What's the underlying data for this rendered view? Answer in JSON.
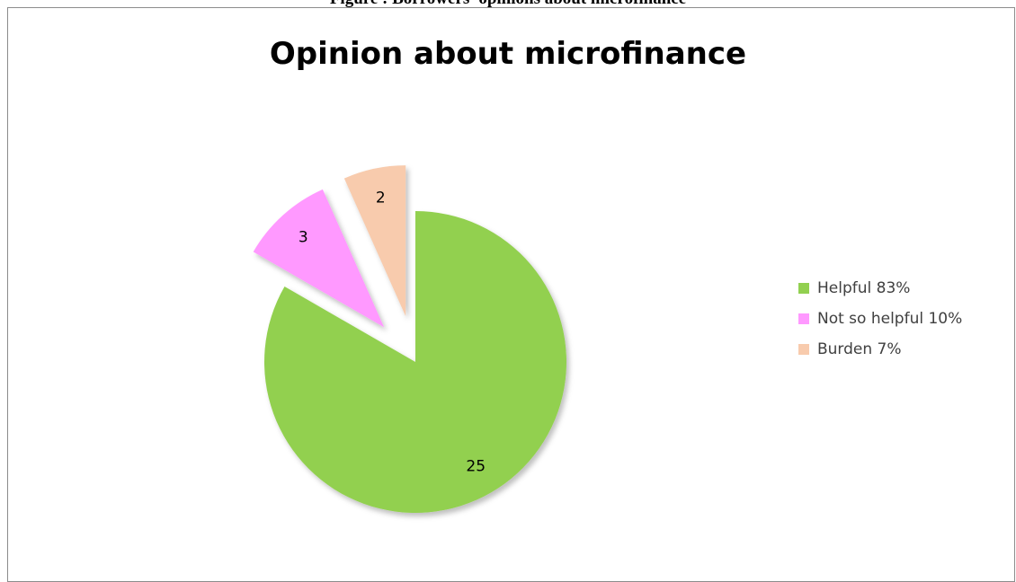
{
  "caption": "Figure : Borrowers' opinions about microfinance",
  "chart_data": {
    "type": "pie",
    "title": "Opinion about microfinance",
    "slices": [
      {
        "label": "Helpful 83%",
        "value": 25,
        "color": "#92d050"
      },
      {
        "label": "Not so helpful 10%",
        "value": 3,
        "color": "#ff99ff"
      },
      {
        "label": "Burden 7%",
        "value": 2,
        "color": "#f8cbad"
      }
    ],
    "exploded": true,
    "legend": "right"
  }
}
